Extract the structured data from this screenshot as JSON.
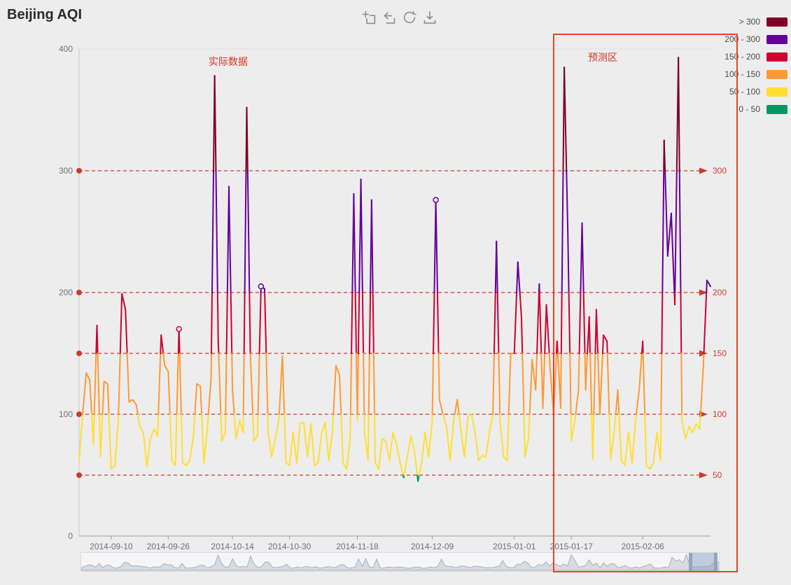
{
  "page": {
    "title": "Beijing AQI",
    "background": "#ededed"
  },
  "toolbox": {
    "icons": [
      {
        "name": "area-zoom-icon"
      },
      {
        "name": "zoom-reset-icon"
      },
      {
        "name": "restore-icon"
      },
      {
        "name": "save-image-icon"
      }
    ]
  },
  "annotations": {
    "actual_label": "实际数据",
    "forecast_label": "预测区",
    "annotation_color": "#d43425",
    "forecast_box_color": "#e8402c"
  },
  "chart_data": {
    "type": "line",
    "title": "Beijing AQI",
    "x_start": "2014-09-01",
    "x_freq": "daily",
    "series": [
      {
        "name": "AQI",
        "values": [
          62,
          100,
          134,
          128,
          75,
          173,
          65,
          127,
          125,
          55,
          58,
          95,
          199,
          186,
          110,
          112,
          108,
          90,
          85,
          57,
          80,
          88,
          82,
          165,
          140,
          135,
          62,
          58,
          170,
          60,
          58,
          62,
          80,
          125,
          123,
          60,
          90,
          130,
          378,
          160,
          78,
          85,
          287,
          120,
          80,
          95,
          85,
          352,
          150,
          78,
          82,
          205,
          203,
          85,
          65,
          80,
          95,
          148,
          60,
          58,
          85,
          60,
          93,
          93,
          65,
          92,
          58,
          60,
          85,
          93,
          62,
          85,
          140,
          132,
          60,
          55,
          80,
          281,
          95,
          293,
          85,
          62,
          276,
          60,
          55,
          80,
          78,
          62,
          85,
          75,
          60,
          48,
          65,
          82,
          70,
          45,
          60,
          85,
          65,
          95,
          276,
          112,
          100,
          90,
          62,
          95,
          112,
          88,
          65,
          98,
          100,
          85,
          62,
          66,
          65,
          85,
          100,
          242,
          95,
          65,
          62,
          150,
          150,
          225,
          180,
          65,
          80,
          145,
          120,
          207,
          105,
          190,
          140,
          100,
          160,
          105,
          385,
          250,
          78,
          95,
          120,
          257,
          120,
          180,
          63,
          186,
          100,
          165,
          160,
          63,
          85,
          120,
          62,
          58,
          85,
          60,
          95,
          120,
          160,
          58,
          55,
          60,
          85,
          62,
          325,
          230,
          265,
          190,
          393,
          95,
          80,
          90,
          85,
          92,
          88,
          140,
          210,
          205
        ]
      }
    ],
    "x_tick_labels": [
      "2014-09-10",
      "2014-09-26",
      "2014-10-14",
      "2014-10-30",
      "2014-11-18",
      "2014-12-09",
      "2015-01-01",
      "2015-01-17",
      "2015-02-06"
    ],
    "ylim": [
      0,
      400
    ],
    "y_ticks": [
      0,
      100,
      200,
      300,
      400
    ],
    "grid": true,
    "line_width": 2,
    "mark_line_color": "#cc3b30",
    "mark_lines": [
      {
        "value": 50,
        "label": "50"
      },
      {
        "value": 100,
        "label": "100"
      },
      {
        "value": 150,
        "label": "150"
      },
      {
        "value": 200,
        "label": "200"
      },
      {
        "value": 300,
        "label": "300"
      }
    ],
    "visual_map": {
      "pieces": [
        {
          "label": "> 300",
          "gt": 300,
          "color": "#7e0023"
        },
        {
          "label": "200 - 300",
          "gt": 200,
          "lte": 300,
          "color": "#660099"
        },
        {
          "label": "150 - 200",
          "gt": 150,
          "lte": 200,
          "color": "#cc0033"
        },
        {
          "label": "100 - 150",
          "gt": 100,
          "lte": 150,
          "color": "#ff9933"
        },
        {
          "label": "50 - 100",
          "gt": 50,
          "lte": 100,
          "color": "#ffde33"
        },
        {
          "label": "0 - 50",
          "gt": 0,
          "lte": 50,
          "color": "#009966"
        }
      ]
    },
    "marked_points": [
      {
        "index": 28
      },
      {
        "index": 51
      },
      {
        "index": 100
      }
    ],
    "legend_position": "top-right",
    "axis_label_color": "#6e7079"
  },
  "datazoom": {
    "window_left_pct": 95.3,
    "window_right_pct": 99.8
  }
}
